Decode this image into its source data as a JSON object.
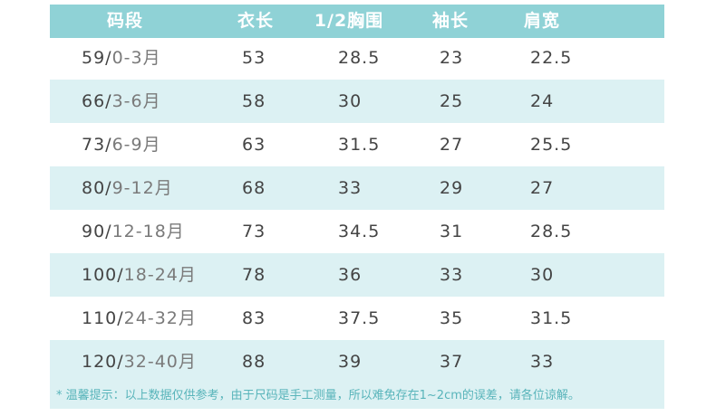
{
  "table": {
    "header": [
      "码段",
      "衣长",
      "1/2胸围",
      "袖长",
      "肩宽"
    ],
    "rows": [
      [
        [
          "59/",
          "0-3月"
        ],
        53,
        28.5,
        23,
        22.5
      ],
      [
        [
          "66/",
          "3-6月"
        ],
        58,
        30,
        25,
        24
      ],
      [
        [
          "73/",
          "6-9月"
        ],
        63,
        31.5,
        27,
        25.5
      ],
      [
        [
          "80/",
          "9-12月"
        ],
        68,
        33,
        29,
        27
      ],
      [
        [
          "90/",
          "12-18月"
        ],
        73,
        34.5,
        31,
        28.5
      ],
      [
        [
          "100/",
          "18-24月"
        ],
        78,
        36,
        33,
        30
      ],
      [
        [
          "110/",
          "24-32月"
        ],
        83,
        37.5,
        35,
        31.5
      ],
      [
        [
          "120/",
          "32-40月"
        ],
        88,
        39,
        37,
        33
      ]
    ]
  },
  "note": "* 温馨提示：以上数据仅供参考，由于尺码是手工测量，所以难免存在1~2cm的误差，请各位谅解。"
}
